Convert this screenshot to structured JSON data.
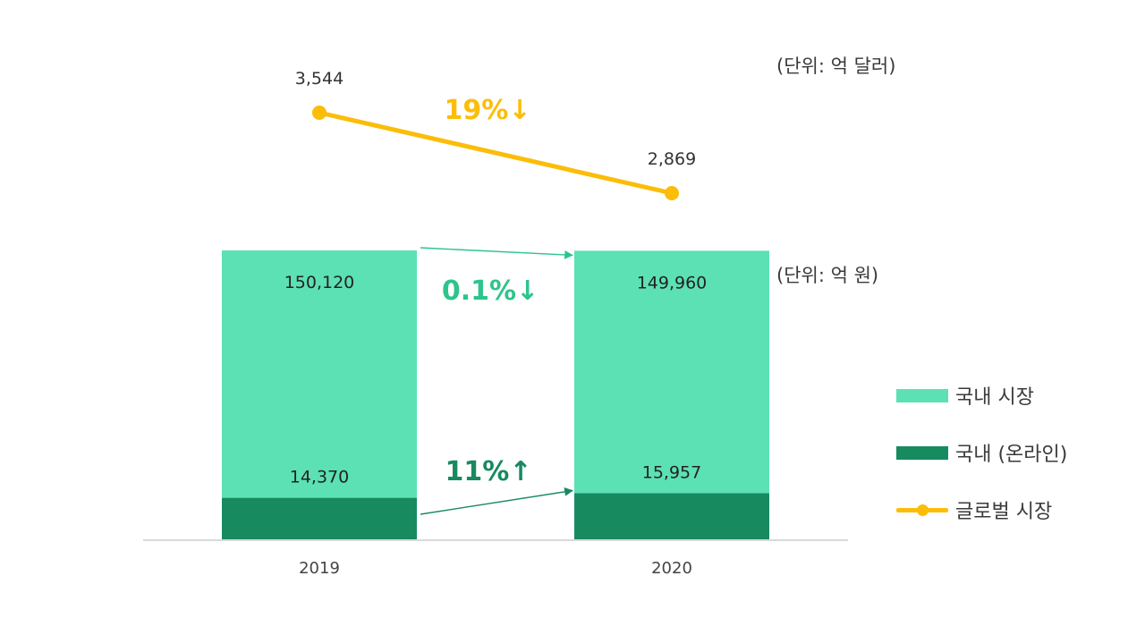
{
  "units": {
    "global": "(단위: 억 달러)",
    "domestic": "(단위: 억 원)"
  },
  "colors": {
    "domestic": "#5ce1b4",
    "online": "#178a60",
    "global": "#fbbd08",
    "domestic_change": "#2ec48c",
    "online_change": "#178a60",
    "axis": "#d9d9d9"
  },
  "legend": [
    {
      "label": "국내 시장",
      "kind": "box",
      "color_key": "domestic"
    },
    {
      "label": "국내 (온라인)",
      "kind": "box",
      "color_key": "online"
    },
    {
      "label": "글로벌 시장",
      "kind": "line",
      "color_key": "global"
    }
  ],
  "chart_data": {
    "type": "bar",
    "categories": [
      "2019",
      "2020"
    ],
    "series": [
      {
        "name": "국내 시장",
        "values": [
          150120,
          149960
        ],
        "labels": [
          "150,120",
          "149,960"
        ]
      },
      {
        "name": "국내 (온라인)",
        "values": [
          14370,
          15957
        ],
        "labels": [
          "14,370",
          "15,957"
        ]
      },
      {
        "name": "글로벌 시장",
        "type": "line",
        "values": [
          3544,
          2869
        ],
        "labels": [
          "3,544",
          "2,869"
        ]
      }
    ],
    "changes": {
      "global": "19%↓",
      "domestic": "0.1%↓",
      "online": "11%↑"
    },
    "bar_ylim": [
      0,
      150120
    ],
    "line_ylim": [
      2869,
      3544
    ],
    "grid": false,
    "legend_position": "right"
  }
}
